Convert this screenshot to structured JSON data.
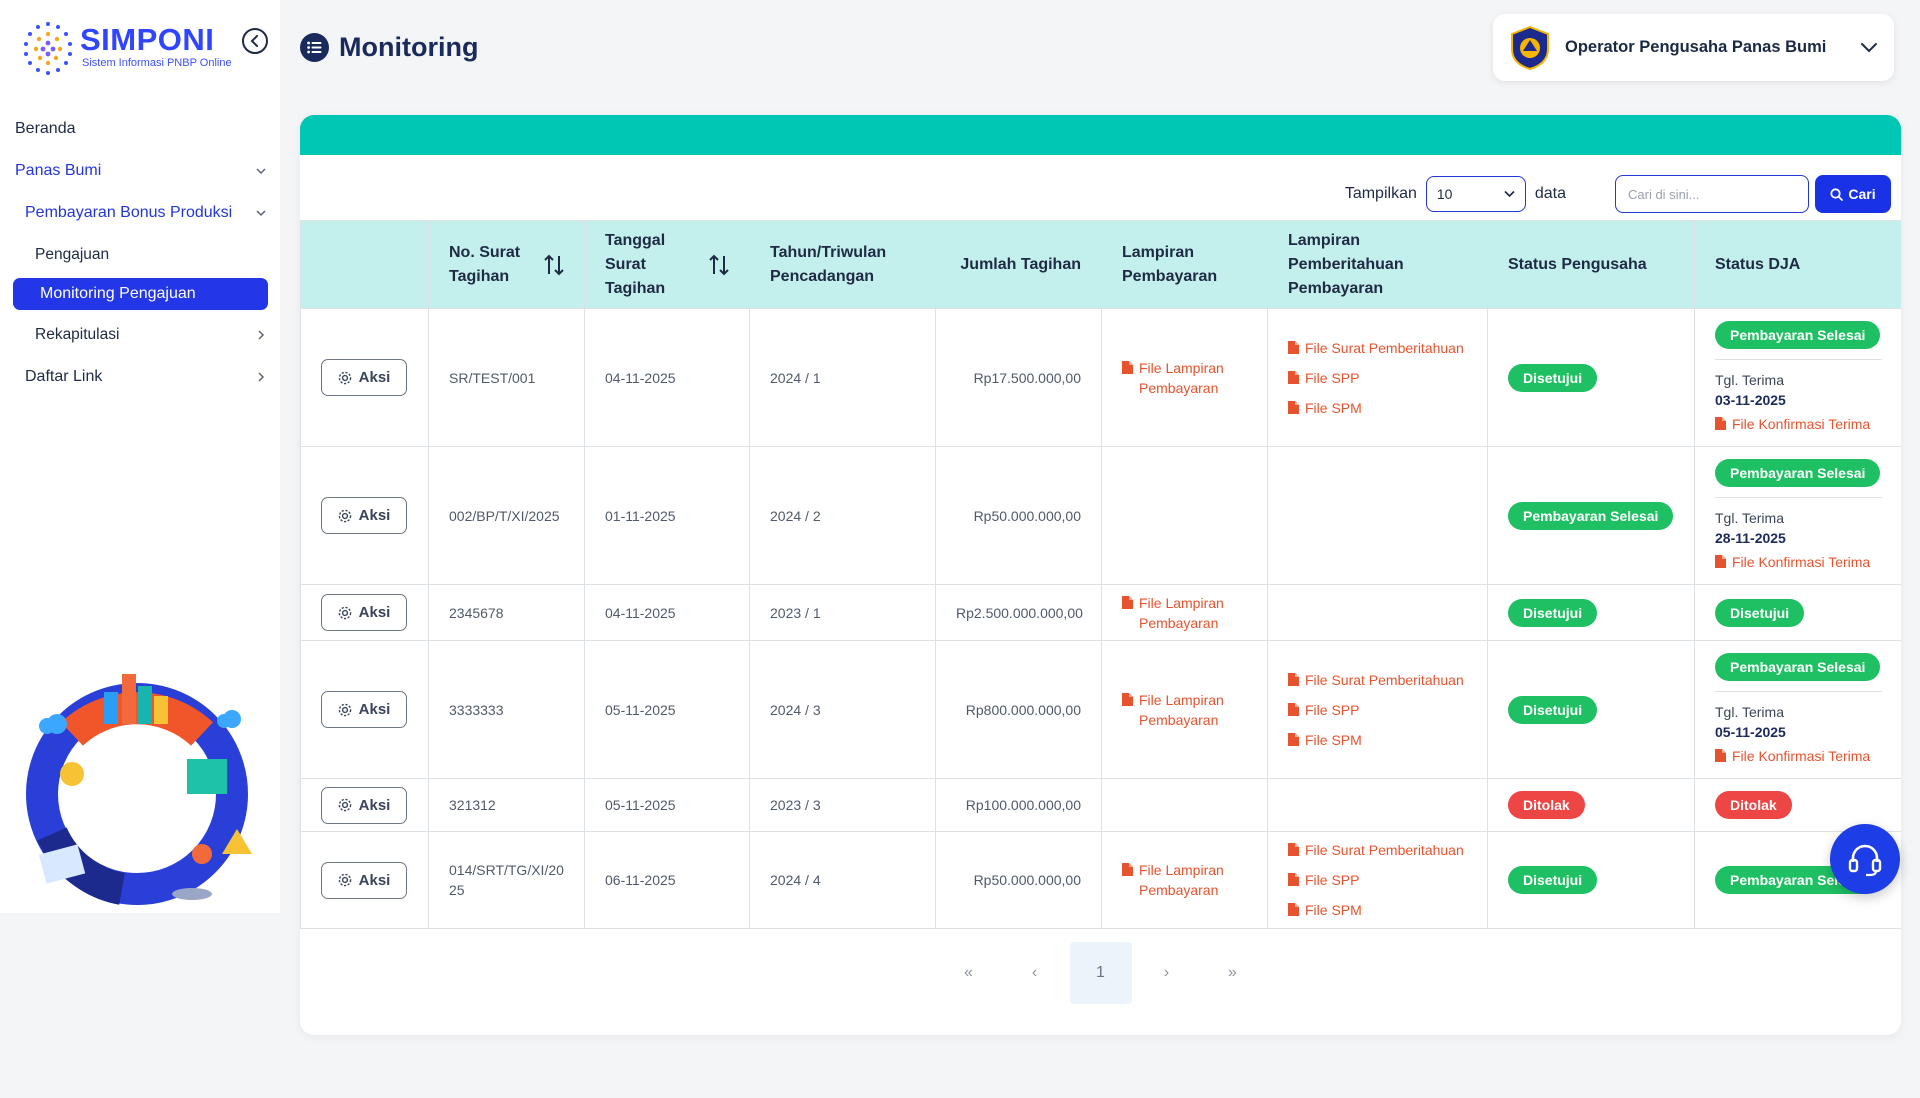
{
  "app": {
    "logo_title": "SIMPONI",
    "logo_subtitle": "Sistem Informasi PNBP Online"
  },
  "sidebar": {
    "items": [
      {
        "label": "Beranda"
      },
      {
        "label": "Panas Bumi"
      },
      {
        "label": "Pembayaran Bonus Produksi"
      },
      {
        "label": "Pengajuan"
      },
      {
        "label": "Monitoring Pengajuan"
      },
      {
        "label": "Rekapitulasi"
      },
      {
        "label": "Daftar Link"
      }
    ]
  },
  "header": {
    "title": "Monitoring",
    "user_name": "Operator Pengusaha Panas Bumi"
  },
  "controls": {
    "show_label": "Tampilkan",
    "page_size": "10",
    "data_label": "data",
    "search_placeholder": "Cari di sini...",
    "search_button": "Cari"
  },
  "table": {
    "headers": {
      "no_surat": "No. Surat Tagihan",
      "tanggal": "Tanggal Surat Tagihan",
      "tahun": "Tahun/Triwulan Pencadangan",
      "jumlah": "Jumlah Tagihan",
      "lampiran": "Lampiran Pembayaran",
      "lampiran_pemberitahuan": "Lampiran Pemberitahuan Pembayaran",
      "status_pengusaha": "Status Pengusaha",
      "status_dja": "Status DJA"
    },
    "aksi_label": "Aksi",
    "file_lampiran": "File Lampiran Pembayaran",
    "file_surat": "File Surat Pemberitahuan",
    "file_spp": "File SPP",
    "file_spm": "File SPM",
    "file_konfirmasi": "File Konfirmasi Terima",
    "tgl_terima_label": "Tgl. Terima",
    "rows": [
      {
        "no": "SR/TEST/001",
        "tanggal": "04-11-2025",
        "tahun": "2024 / 1",
        "jumlah": "Rp17.500.000,00",
        "status_pengusaha": "Disetujui",
        "status_dja": "Pembayaran Selesai",
        "tgl_terima": "03-11-2025"
      },
      {
        "no": "002/BP/T/XI/2025",
        "tanggal": "01-11-2025",
        "tahun": "2024 / 2",
        "jumlah": "Rp50.000.000,00",
        "status_pengusaha": "Pembayaran Selesai",
        "status_dja": "Pembayaran Selesai",
        "tgl_terima": "28-11-2025"
      },
      {
        "no": "2345678",
        "tanggal": "04-11-2025",
        "tahun": "2023 / 1",
        "jumlah": "Rp2.500.000.000,00",
        "status_pengusaha": "Disetujui",
        "status_dja": "Disetujui"
      },
      {
        "no": "3333333",
        "tanggal": "05-11-2025",
        "tahun": "2024 / 3",
        "jumlah": "Rp800.000.000,00",
        "status_pengusaha": "Disetujui",
        "status_dja": "Pembayaran Selesai",
        "tgl_terima": "05-11-2025"
      },
      {
        "no": "321312",
        "tanggal": "05-11-2025",
        "tahun": "2023 / 3",
        "jumlah": "Rp100.000.000,00",
        "status_pengusaha": "Ditolak",
        "status_dja": "Ditolak"
      },
      {
        "no": "014/SRT/TG/XI/2025",
        "tanggal": "06-11-2025",
        "tahun": "2024 / 4",
        "jumlah": "Rp50.000.000,00",
        "status_pengusaha": "Disetujui",
        "status_dja": "Pembayaran Selesai"
      }
    ]
  },
  "pagination": {
    "first": "«",
    "prev": "‹",
    "current": "1",
    "next": "›",
    "last": "»"
  },
  "colors": {
    "brand": "#2336e8",
    "teal": "#00c6b4",
    "header_bg": "#c3f0ec",
    "success": "#1fc063",
    "danger": "#ee4545",
    "file_link": "#e5542f"
  }
}
